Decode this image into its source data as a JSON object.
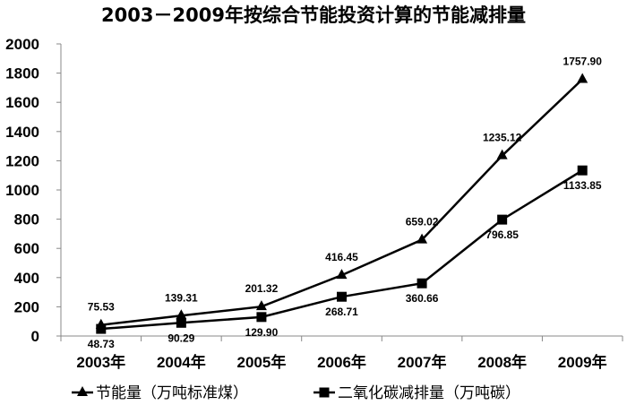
{
  "chart_data": {
    "type": "line",
    "title": "2003－2009年按综合节能投资计算的节能减排量",
    "xlabel": "",
    "ylabel": "",
    "categories": [
      "2003年",
      "2004年",
      "2005年",
      "2006年",
      "2007年",
      "2008年",
      "2009年"
    ],
    "ylim": [
      0,
      2000
    ],
    "yticks": [
      "0",
      "200",
      "400",
      "600",
      "800",
      "1000",
      "1200",
      "1400",
      "1600",
      "1800",
      "2000"
    ],
    "grid": false,
    "legend": "bottom",
    "series": [
      {
        "name": "节能量（万吨标准煤）",
        "marker": "triangle",
        "color": "#000000",
        "values": [
          75.53,
          139.31,
          201.32,
          416.45,
          659.02,
          1235.12,
          1757.9
        ],
        "labels": [
          "75.53",
          "139.31",
          "201.32",
          "416.45",
          "659.02",
          "1235.12",
          "1757.90"
        ]
      },
      {
        "name": "二氧化碳减排量（万吨碳）",
        "marker": "square",
        "color": "#000000",
        "values": [
          48.73,
          90.29,
          129.9,
          268.71,
          360.66,
          796.85,
          1133.85
        ],
        "labels": [
          "48.73",
          "90.29",
          "129.90",
          "268.71",
          "360.66",
          "796.85",
          "1133.85"
        ]
      }
    ]
  }
}
